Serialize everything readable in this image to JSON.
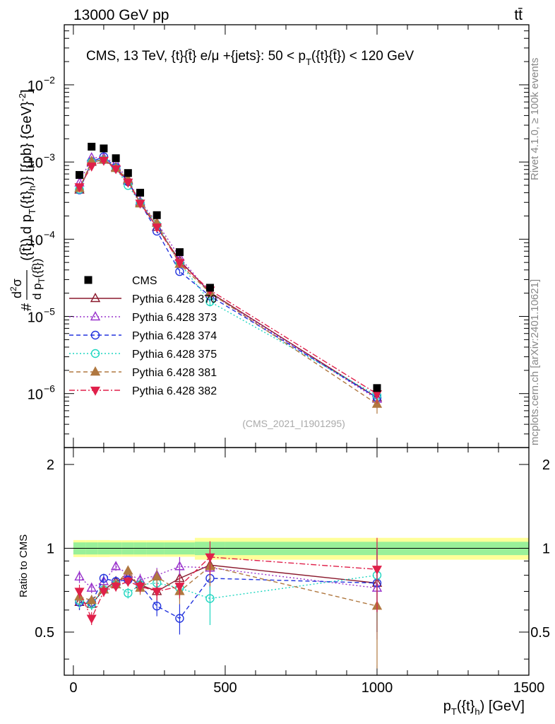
{
  "header": {
    "energy_label": "13000 GeV pp",
    "process_label": "tt̄"
  },
  "side": {
    "rivet_label": "Rivet 4.1.0, ≥ 100k events",
    "mcplots_label": "mcplots.cern.ch [arXiv:2401.10621]"
  },
  "chart_data": {
    "type": "scatter",
    "title": "CMS, 13 TeV, {t}{t̄} e/μ +{jets}: 50 < p_T({t}{t̄}) < 120 GeV",
    "title_parts": {
      "main": "CMS, 13 TeV, {t}{t̄} e/μ +{jets}: 50 <  p",
      "sub": "T",
      "tail": "({t}{t̄}) < 120 GeV"
    },
    "analysis_id": "(CMS_2021_I1901295)",
    "xlabel": "p_T({t}_h) [GeV]",
    "xlabel_parts": {
      "p": "p",
      "subT": "T",
      "mid": "({t}",
      "subh": "h",
      "tail": ") [GeV]"
    },
    "ylabel": "#d²σ/dp_T({t̄})dp_T({t}_h) [{pb} {GeV}^-2]",
    "ylabel_parts": {
      "hash": "#",
      "num": "d",
      "sup": "2",
      "sigma": "σ",
      "den": "d p",
      "denSub": "T",
      "denTail": "({t̄})",
      "tail": "({t̄}) d p",
      "tailSub": "T",
      "tail2": "({t}",
      "tailSub2": "h",
      "tail3": ")} [{pb} {GeV}",
      "tailSup": "-2",
      "tail4": "]"
    },
    "ratio_ylabel": "Ratio to CMS",
    "xlim": [
      -30,
      1500
    ],
    "ylim": [
      2e-07,
      0.06
    ],
    "ratio_ylim": [
      0.35,
      2.3
    ],
    "x_ticks": [
      0,
      500,
      1000,
      1500
    ],
    "x_tick_labels": [
      "0",
      "500",
      "1000",
      "1500"
    ],
    "y_ticks": [
      1e-06,
      1e-05,
      0.0001,
      0.001,
      0.01
    ],
    "y_tick_labels": [
      {
        "base": "10",
        "exp": "−6"
      },
      {
        "base": "10",
        "exp": "−5"
      },
      {
        "base": "10",
        "exp": "−4"
      },
      {
        "base": "10",
        "exp": "−3"
      },
      {
        "base": "10",
        "exp": "−2"
      }
    ],
    "ratio_ticks": [
      0.5,
      1,
      2
    ],
    "ratio_tick_labels": [
      "0.5",
      "1",
      "2"
    ],
    "x": [
      20,
      60,
      100,
      140,
      180,
      220,
      275,
      350,
      450,
      1000
    ],
    "band_edges": [
      0,
      40,
      80,
      120,
      160,
      200,
      240,
      300,
      400,
      500,
      1500
    ],
    "band_inner": [
      0.05,
      0.05,
      0.05,
      0.05,
      0.05,
      0.05,
      0.05,
      0.05,
      0.055,
      0.055
    ],
    "band_outer": [
      0.07,
      0.07,
      0.07,
      0.068,
      0.068,
      0.068,
      0.068,
      0.068,
      0.09,
      0.09
    ],
    "data": {
      "name": "CMS",
      "color": "#000000",
      "values": [
        0.00068,
        0.00158,
        0.0015,
        0.00112,
        0.00072,
        0.0004,
        0.000205,
        6.8e-05,
        2.35e-05,
        1.18e-06
      ]
    },
    "series": [
      {
        "name": "Pythia 6.428 370",
        "color": "#8b1a2e",
        "marker": "triangle-open",
        "dash": "none",
        "ratio": [
          0.64,
          0.63,
          0.71,
          0.76,
          0.79,
          0.74,
          0.7,
          0.78,
          0.87,
          0.75
        ],
        "ratio_err": [
          0.04,
          0.03,
          0.03,
          0.03,
          0.03,
          0.04,
          0.05,
          0.07,
          0.13,
          0.25
        ]
      },
      {
        "name": "Pythia 6.428 373",
        "color": "#9933cc",
        "marker": "triangle-open",
        "dash": "2,3",
        "ratio": [
          0.79,
          0.72,
          0.76,
          0.86,
          0.81,
          0.77,
          0.8,
          0.86,
          0.85,
          0.72
        ],
        "ratio_err": [
          0.04,
          0.03,
          0.03,
          0.03,
          0.03,
          0.04,
          0.05,
          0.07,
          0.13,
          0.25
        ]
      },
      {
        "name": "Pythia 6.428 374",
        "color": "#2233dd",
        "marker": "circle-open",
        "dash": "6,4",
        "ratio": [
          0.64,
          0.64,
          0.78,
          0.76,
          0.77,
          0.74,
          0.62,
          0.56,
          0.78,
          0.75
        ],
        "ratio_err": [
          0.04,
          0.03,
          0.03,
          0.03,
          0.03,
          0.04,
          0.05,
          0.07,
          0.13,
          0.25
        ]
      },
      {
        "name": "Pythia 6.428 375",
        "color": "#1fd6c0",
        "marker": "circle-open",
        "dash": "2,3",
        "ratio": [
          0.65,
          0.63,
          0.71,
          0.74,
          0.69,
          0.74,
          0.75,
          0.72,
          0.66,
          0.8
        ],
        "ratio_err": [
          0.04,
          0.03,
          0.03,
          0.03,
          0.03,
          0.04,
          0.05,
          0.07,
          0.13,
          0.25
        ]
      },
      {
        "name": "Pythia 6.428 381",
        "color": "#b07840",
        "marker": "triangle-filled",
        "dash": "6,4",
        "ratio": [
          0.67,
          0.65,
          0.71,
          0.74,
          0.83,
          0.72,
          0.79,
          0.7,
          0.86,
          0.62
        ],
        "ratio_err": [
          0.04,
          0.03,
          0.03,
          0.03,
          0.03,
          0.04,
          0.05,
          0.07,
          0.13,
          0.25
        ]
      },
      {
        "name": "Pythia 6.428 382",
        "color": "#e0204a",
        "marker": "triangle-down-filled",
        "dash": "8,3,2,3",
        "ratio": [
          0.7,
          0.56,
          0.7,
          0.73,
          0.76,
          0.73,
          0.7,
          0.73,
          0.93,
          0.84
        ],
        "ratio_err": [
          0.04,
          0.03,
          0.03,
          0.03,
          0.03,
          0.04,
          0.05,
          0.07,
          0.13,
          0.25
        ]
      }
    ],
    "band_colors": {
      "inner": "#99f099",
      "outer": "#ffff99"
    },
    "legend_position": "left-middle"
  }
}
